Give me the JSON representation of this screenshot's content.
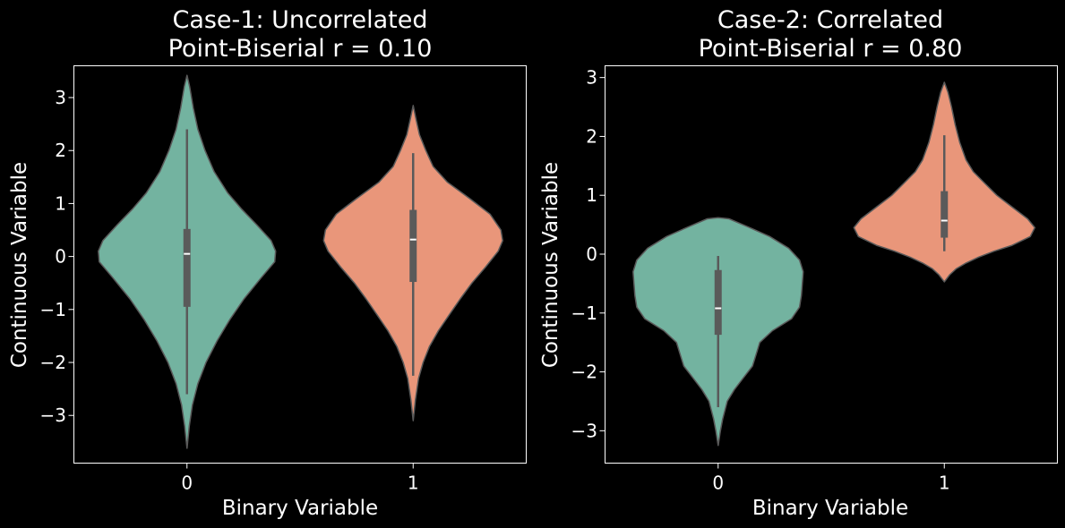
{
  "chart_data": [
    {
      "type": "violin",
      "title_line1": "Case-1: Uncorrelated",
      "title_line2": "Point-Biserial r = 0.10",
      "xlabel": "Binary Variable",
      "ylabel": "Continuous Variable",
      "categories": [
        "0",
        "1"
      ],
      "ylim": [
        -3.9,
        3.6
      ],
      "yticks": [
        -3,
        -2,
        -1,
        0,
        1,
        2,
        3
      ],
      "ytick_labels": [
        "−3",
        "−2",
        "−1",
        "0",
        "1",
        "2",
        "3"
      ],
      "colors": [
        "#73b3a0",
        "#e9967a"
      ],
      "grid": false,
      "violins": [
        {
          "category": "0",
          "color": "#73b3a0",
          "min": -2.6,
          "q1": -0.95,
          "median": 0.05,
          "q3": 0.52,
          "max": 2.4,
          "kde_top": 3.42,
          "kde_bottom": -3.62,
          "density": [
            [
              3.42,
              0
            ],
            [
              3.2,
              0.03
            ],
            [
              2.8,
              0.07
            ],
            [
              2.4,
              0.12
            ],
            [
              2.0,
              0.2
            ],
            [
              1.6,
              0.3
            ],
            [
              1.2,
              0.45
            ],
            [
              0.9,
              0.6
            ],
            [
              0.6,
              0.77
            ],
            [
              0.3,
              0.93
            ],
            [
              0.1,
              0.98
            ],
            [
              -0.1,
              0.97
            ],
            [
              -0.4,
              0.82
            ],
            [
              -0.8,
              0.63
            ],
            [
              -1.2,
              0.47
            ],
            [
              -1.6,
              0.33
            ],
            [
              -2.0,
              0.21
            ],
            [
              -2.4,
              0.12
            ],
            [
              -2.8,
              0.06
            ],
            [
              -3.2,
              0.025
            ],
            [
              -3.62,
              0
            ]
          ]
        },
        {
          "category": "1",
          "color": "#e9967a",
          "min": -2.25,
          "q1": -0.48,
          "median": 0.32,
          "q3": 0.88,
          "max": 1.95,
          "kde_top": 2.85,
          "kde_bottom": -3.1,
          "density": [
            [
              2.85,
              0
            ],
            [
              2.6,
              0.03
            ],
            [
              2.3,
              0.07
            ],
            [
              2.0,
              0.14
            ],
            [
              1.7,
              0.22
            ],
            [
              1.4,
              0.38
            ],
            [
              1.1,
              0.62
            ],
            [
              0.8,
              0.85
            ],
            [
              0.5,
              0.97
            ],
            [
              0.3,
              0.99
            ],
            [
              0.1,
              0.94
            ],
            [
              -0.2,
              0.8
            ],
            [
              -0.5,
              0.65
            ],
            [
              -0.8,
              0.52
            ],
            [
              -1.1,
              0.4
            ],
            [
              -1.4,
              0.28
            ],
            [
              -1.7,
              0.18
            ],
            [
              -2.0,
              0.11
            ],
            [
              -2.3,
              0.06
            ],
            [
              -2.7,
              0.025
            ],
            [
              -3.1,
              0
            ]
          ]
        }
      ]
    },
    {
      "type": "violin",
      "title_line1": "Case-2: Correlated",
      "title_line2": "Point-Biserial r = 0.80",
      "xlabel": "Binary Variable",
      "ylabel": "Continuous Variable",
      "categories": [
        "0",
        "1"
      ],
      "ylim": [
        -3.55,
        3.2
      ],
      "yticks": [
        -3,
        -2,
        -1,
        0,
        1,
        2,
        3
      ],
      "ytick_labels": [
        "−3",
        "−2",
        "−1",
        "0",
        "1",
        "2",
        "3"
      ],
      "colors": [
        "#73b3a0",
        "#e9967a"
      ],
      "grid": false,
      "violins": [
        {
          "category": "0",
          "color": "#73b3a0",
          "min": -2.6,
          "q1": -1.37,
          "median": -0.92,
          "q3": -0.27,
          "max": -0.03,
          "kde_top": 0.62,
          "kde_bottom": -3.25,
          "density": [
            [
              0.62,
              0
            ],
            [
              0.6,
              0.12
            ],
            [
              0.45,
              0.35
            ],
            [
              0.3,
              0.57
            ],
            [
              0.1,
              0.78
            ],
            [
              -0.1,
              0.9
            ],
            [
              -0.3,
              0.94
            ],
            [
              -0.5,
              0.93
            ],
            [
              -0.7,
              0.92
            ],
            [
              -0.9,
              0.9
            ],
            [
              -1.1,
              0.81
            ],
            [
              -1.3,
              0.6
            ],
            [
              -1.5,
              0.46
            ],
            [
              -1.7,
              0.42
            ],
            [
              -1.9,
              0.38
            ],
            [
              -2.1,
              0.28
            ],
            [
              -2.3,
              0.18
            ],
            [
              -2.5,
              0.1
            ],
            [
              -2.8,
              0.05
            ],
            [
              -3.0,
              0.025
            ],
            [
              -3.25,
              0
            ]
          ]
        },
        {
          "category": "1",
          "color": "#e9967a",
          "min": 0.05,
          "q1": 0.28,
          "median": 0.57,
          "q3": 1.07,
          "max": 2.02,
          "kde_top": 2.92,
          "kde_bottom": -0.47,
          "density": [
            [
              2.92,
              0
            ],
            [
              2.75,
              0.04
            ],
            [
              2.5,
              0.08
            ],
            [
              2.2,
              0.12
            ],
            [
              1.9,
              0.17
            ],
            [
              1.6,
              0.24
            ],
            [
              1.4,
              0.32
            ],
            [
              1.2,
              0.45
            ],
            [
              1.0,
              0.58
            ],
            [
              0.8,
              0.75
            ],
            [
              0.6,
              0.92
            ],
            [
              0.45,
              1.0
            ],
            [
              0.3,
              0.95
            ],
            [
              0.15,
              0.75
            ],
            [
              0.05,
              0.55
            ],
            [
              -0.05,
              0.38
            ],
            [
              -0.15,
              0.24
            ],
            [
              -0.25,
              0.13
            ],
            [
              -0.35,
              0.06
            ],
            [
              -0.47,
              0
            ]
          ]
        }
      ]
    }
  ]
}
